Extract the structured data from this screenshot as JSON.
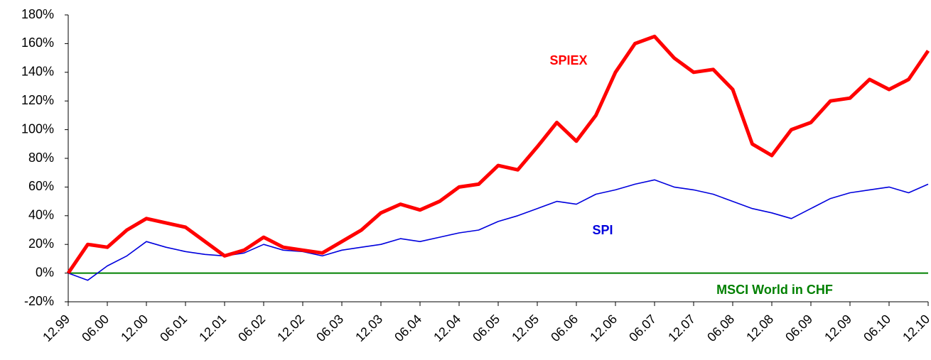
{
  "chart_data": {
    "type": "line",
    "categories": [
      "12.99",
      null,
      "06.00",
      null,
      "12.00",
      null,
      "06.01",
      null,
      "12.01",
      null,
      "06.02",
      null,
      "12.02",
      null,
      "06.03",
      null,
      "12.03",
      null,
      "06.04",
      null,
      "12.04",
      null,
      "06.05",
      null,
      "12.05",
      null,
      "06.06",
      null,
      "12.06",
      null,
      "06.07",
      null,
      "12.07",
      null,
      "06.08",
      null,
      "12.08",
      null,
      "06.09",
      null,
      "12.09",
      null,
      "06.10",
      null,
      "12.10"
    ],
    "series": [
      {
        "name": "SPIEX",
        "color": "#ff0000",
        "values": [
          0,
          20,
          18,
          30,
          38,
          35,
          32,
          22,
          12,
          16,
          25,
          18,
          16,
          14,
          22,
          30,
          42,
          48,
          44,
          50,
          60,
          62,
          75,
          72,
          88,
          105,
          92,
          110,
          140,
          160,
          165,
          150,
          140,
          142,
          128,
          90,
          82,
          100,
          105,
          120,
          122,
          135,
          128,
          135,
          155
        ]
      },
      {
        "name": "SPI",
        "color": "#0000dd",
        "values": [
          0,
          -5,
          5,
          12,
          22,
          18,
          15,
          13,
          12,
          14,
          20,
          16,
          15,
          12,
          16,
          18,
          20,
          24,
          22,
          25,
          28,
          30,
          36,
          40,
          45,
          50,
          48,
          55,
          58,
          62,
          65,
          60,
          58,
          55,
          50,
          45,
          42,
          38,
          45,
          52,
          56,
          58,
          60,
          56,
          62
        ]
      },
      {
        "name": "MSCI World in CHF",
        "color": "#008000",
        "values": [
          0,
          0,
          0,
          0,
          0,
          0,
          0,
          0,
          0,
          0,
          0,
          0,
          0,
          0,
          0,
          0,
          0,
          0,
          0,
          0,
          0,
          0,
          0,
          0,
          0,
          0,
          0,
          0,
          0,
          0,
          0,
          0,
          0,
          0,
          0,
          0,
          0,
          0,
          0,
          0,
          0,
          0,
          0,
          0,
          0
        ]
      }
    ],
    "ylim": [
      -20,
      180
    ],
    "yticks": [
      {
        "value": -20,
        "label": "-20%"
      },
      {
        "value": 0,
        "label": "0%"
      },
      {
        "value": 20,
        "label": "20%"
      },
      {
        "value": 40,
        "label": "40%"
      },
      {
        "value": 60,
        "label": "60%"
      },
      {
        "value": 80,
        "label": "80%"
      },
      {
        "value": 100,
        "label": "100%"
      },
      {
        "value": 120,
        "label": "120%"
      },
      {
        "value": 140,
        "label": "140%"
      },
      {
        "value": 160,
        "label": "160%"
      },
      {
        "value": 180,
        "label": "180%"
      }
    ],
    "grid": false
  }
}
